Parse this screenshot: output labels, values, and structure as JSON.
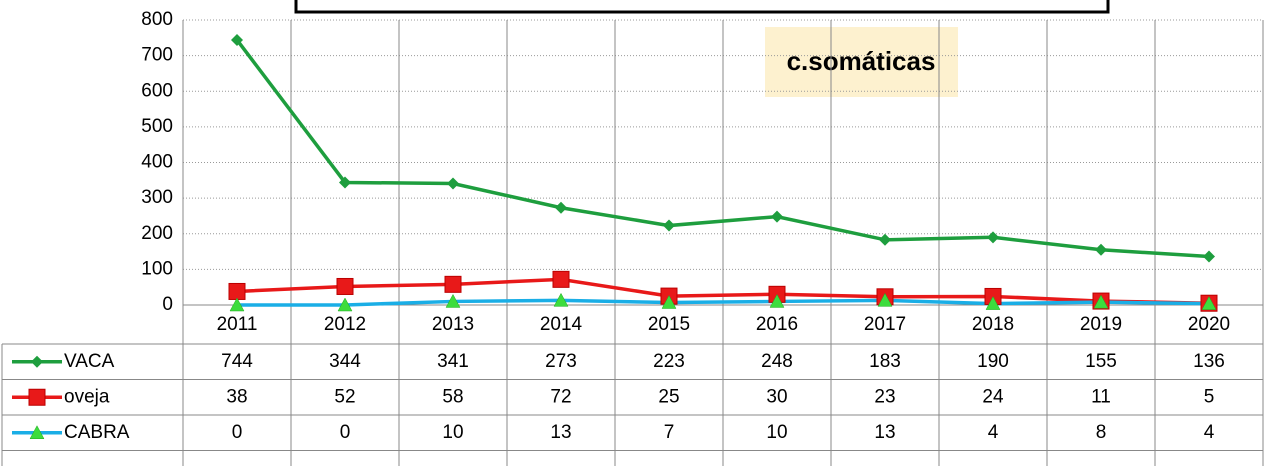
{
  "chart_data": {
    "type": "line",
    "annotation": "c.somáticas",
    "categories": [
      "2011",
      "2012",
      "2013",
      "2014",
      "2015",
      "2016",
      "2017",
      "2018",
      "2019",
      "2020"
    ],
    "series": [
      {
        "name": "VACA",
        "color": "#1e9e3e",
        "marker": "diamond",
        "marker_color": "#1e9e3e",
        "values": [
          744,
          344,
          341,
          273,
          223,
          248,
          183,
          190,
          155,
          136
        ]
      },
      {
        "name": "oveja",
        "color": "#e81919",
        "marker": "square",
        "marker_color": "#e81919",
        "values": [
          38,
          52,
          58,
          72,
          25,
          30,
          23,
          24,
          11,
          5
        ]
      },
      {
        "name": "CABRA",
        "color": "#1aaee6",
        "marker": "triangle",
        "marker_color": "#3ddc3d",
        "values": [
          0,
          0,
          10,
          13,
          7,
          10,
          13,
          4,
          8,
          4
        ]
      }
    ],
    "ylim": [
      0,
      800
    ],
    "yticks": [
      0,
      100,
      200,
      300,
      400,
      500,
      600,
      700,
      800
    ],
    "grid": true,
    "data_table": true
  }
}
